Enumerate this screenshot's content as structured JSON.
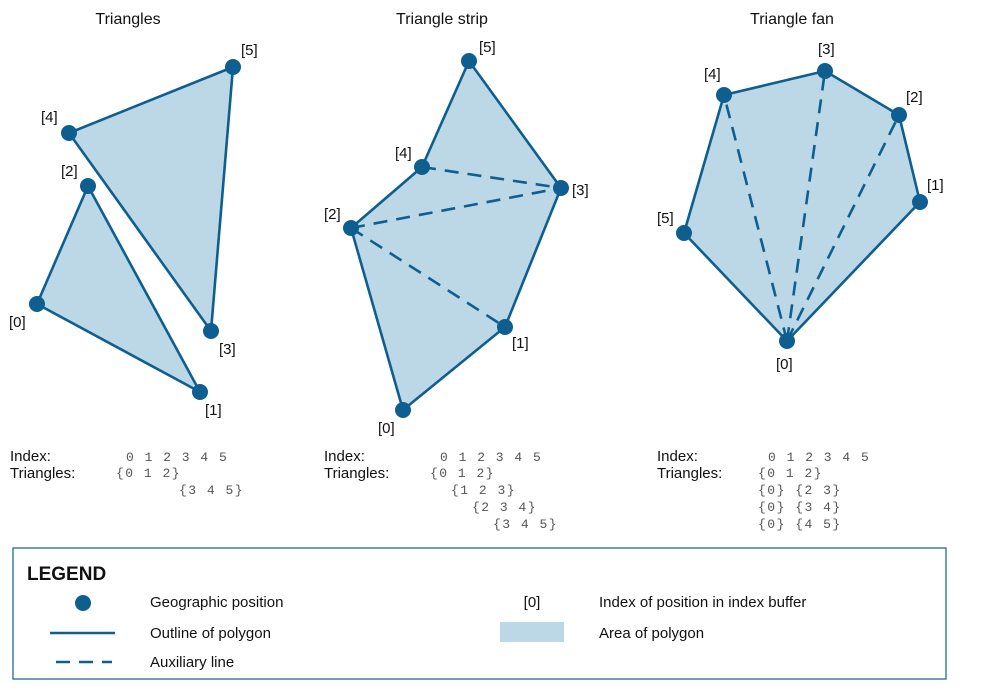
{
  "panels": {
    "triangles": {
      "title": "Triangles",
      "labels": [
        "[0]",
        "[1]",
        "[2]",
        "[3]",
        "[4]",
        "[5]"
      ],
      "index_label": "Index:",
      "triangles_label": "Triangles:",
      "index_row": "0 1 2 3 4 5",
      "rows": [
        "{0 1 2}",
        "{3 4 5}"
      ]
    },
    "strip": {
      "title": "Triangle strip",
      "labels": [
        "[0]",
        "[1]",
        "[2]",
        "[3]",
        "[4]",
        "[5]"
      ],
      "index_label": "Index:",
      "triangles_label": "Triangles:",
      "index_row": "0 1 2 3 4 5",
      "rows": [
        "{0 1 2}",
        "{1 2 3}",
        "{2 3 4}",
        "{3 4 5}"
      ]
    },
    "fan": {
      "title": "Triangle fan",
      "labels": [
        "[0]",
        "[1]",
        "[2]",
        "[3]",
        "[4]",
        "[5]"
      ],
      "index_label": "Index:",
      "triangles_label": "Triangles:",
      "index_row": "0 1 2 3 4 5",
      "rows": [
        "{0 1 2}",
        "{0} {2 3}",
        "{0} {3 4}",
        "{0} {4 5}"
      ]
    }
  },
  "legend": {
    "title": "LEGEND",
    "geographic_position": "Geographic position",
    "outline": "Outline of polygon",
    "auxiliary": "Auxiliary line",
    "index_sample": "[0]",
    "index_desc": "Index of position in index buffer",
    "area": "Area of polygon"
  },
  "colors": {
    "stroke": "#0e5f8f",
    "fill": "#bcd7e6"
  }
}
